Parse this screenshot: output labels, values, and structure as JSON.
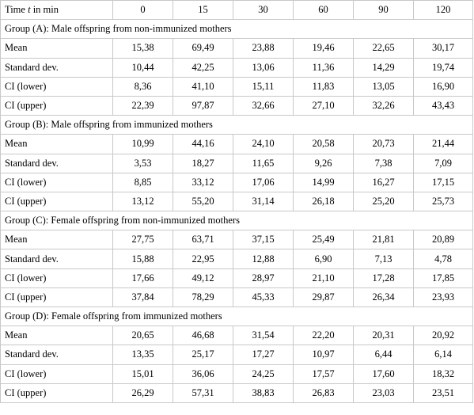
{
  "header": {
    "label_prefix": "Time ",
    "label_var": "t",
    "label_suffix": " in min",
    "times": [
      "0",
      "15",
      "30",
      "60",
      "90",
      "120"
    ]
  },
  "groups": [
    {
      "title": "Group (A): Male offspring from non-immunized mothers",
      "rows": [
        {
          "label": "Mean",
          "values": [
            "15,38",
            "69,49",
            "23,88",
            "19,46",
            "22,65",
            "30,17"
          ]
        },
        {
          "label": "Standard dev.",
          "values": [
            "10,44",
            "42,25",
            "13,06",
            "11,36",
            "14,29",
            "19,74"
          ]
        },
        {
          "label": "CI (lower)",
          "values": [
            "8,36",
            "41,10",
            "15,11",
            "11,83",
            "13,05",
            "16,90"
          ]
        },
        {
          "label": "CI (upper)",
          "values": [
            "22,39",
            "97,87",
            "32,66",
            "27,10",
            "32,26",
            "43,43"
          ]
        }
      ]
    },
    {
      "title": "Group (B): Male offspring from immunized mothers",
      "rows": [
        {
          "label": "Mean",
          "values": [
            "10,99",
            "44,16",
            "24,10",
            "20,58",
            "20,73",
            "21,44"
          ]
        },
        {
          "label": "Standard dev.",
          "values": [
            "3,53",
            "18,27",
            "11,65",
            "9,26",
            "7,38",
            "7,09"
          ]
        },
        {
          "label": "CI (lower)",
          "values": [
            "8,85",
            "33,12",
            "17,06",
            "14,99",
            "16,27",
            "17,15"
          ]
        },
        {
          "label": "CI (upper)",
          "values": [
            "13,12",
            "55,20",
            "31,14",
            "26,18",
            "25,20",
            "25,73"
          ]
        }
      ]
    },
    {
      "title": "Group (C): Female offspring from non-immunized mothers",
      "rows": [
        {
          "label": "Mean",
          "values": [
            "27,75",
            "63,71",
            "37,15",
            "25,49",
            "21,81",
            "20,89"
          ]
        },
        {
          "label": "Standard dev.",
          "values": [
            "15,88",
            "22,95",
            "12,88",
            "6,90",
            "7,13",
            "4,78"
          ]
        },
        {
          "label": "CI (lower)",
          "values": [
            "17,66",
            "49,12",
            "28,97",
            "21,10",
            "17,28",
            "17,85"
          ]
        },
        {
          "label": "CI (upper)",
          "values": [
            "37,84",
            "78,29",
            "45,33",
            "29,87",
            "26,34",
            "23,93"
          ]
        }
      ]
    },
    {
      "title": "Group (D): Female offspring from immunized mothers",
      "rows": [
        {
          "label": "Mean",
          "values": [
            "20,65",
            "46,68",
            "31,54",
            "22,20",
            "20,31",
            "20,92"
          ]
        },
        {
          "label": "Standard dev.",
          "values": [
            "13,35",
            "25,17",
            "17,27",
            "10,97",
            "6,44",
            "6,14"
          ]
        },
        {
          "label": "CI (lower)",
          "values": [
            "15,01",
            "36,06",
            "24,25",
            "17,57",
            "17,60",
            "18,32"
          ]
        },
        {
          "label": "CI (upper)",
          "values": [
            "26,29",
            "57,31",
            "38,83",
            "26,83",
            "23,03",
            "23,51"
          ]
        }
      ]
    }
  ]
}
